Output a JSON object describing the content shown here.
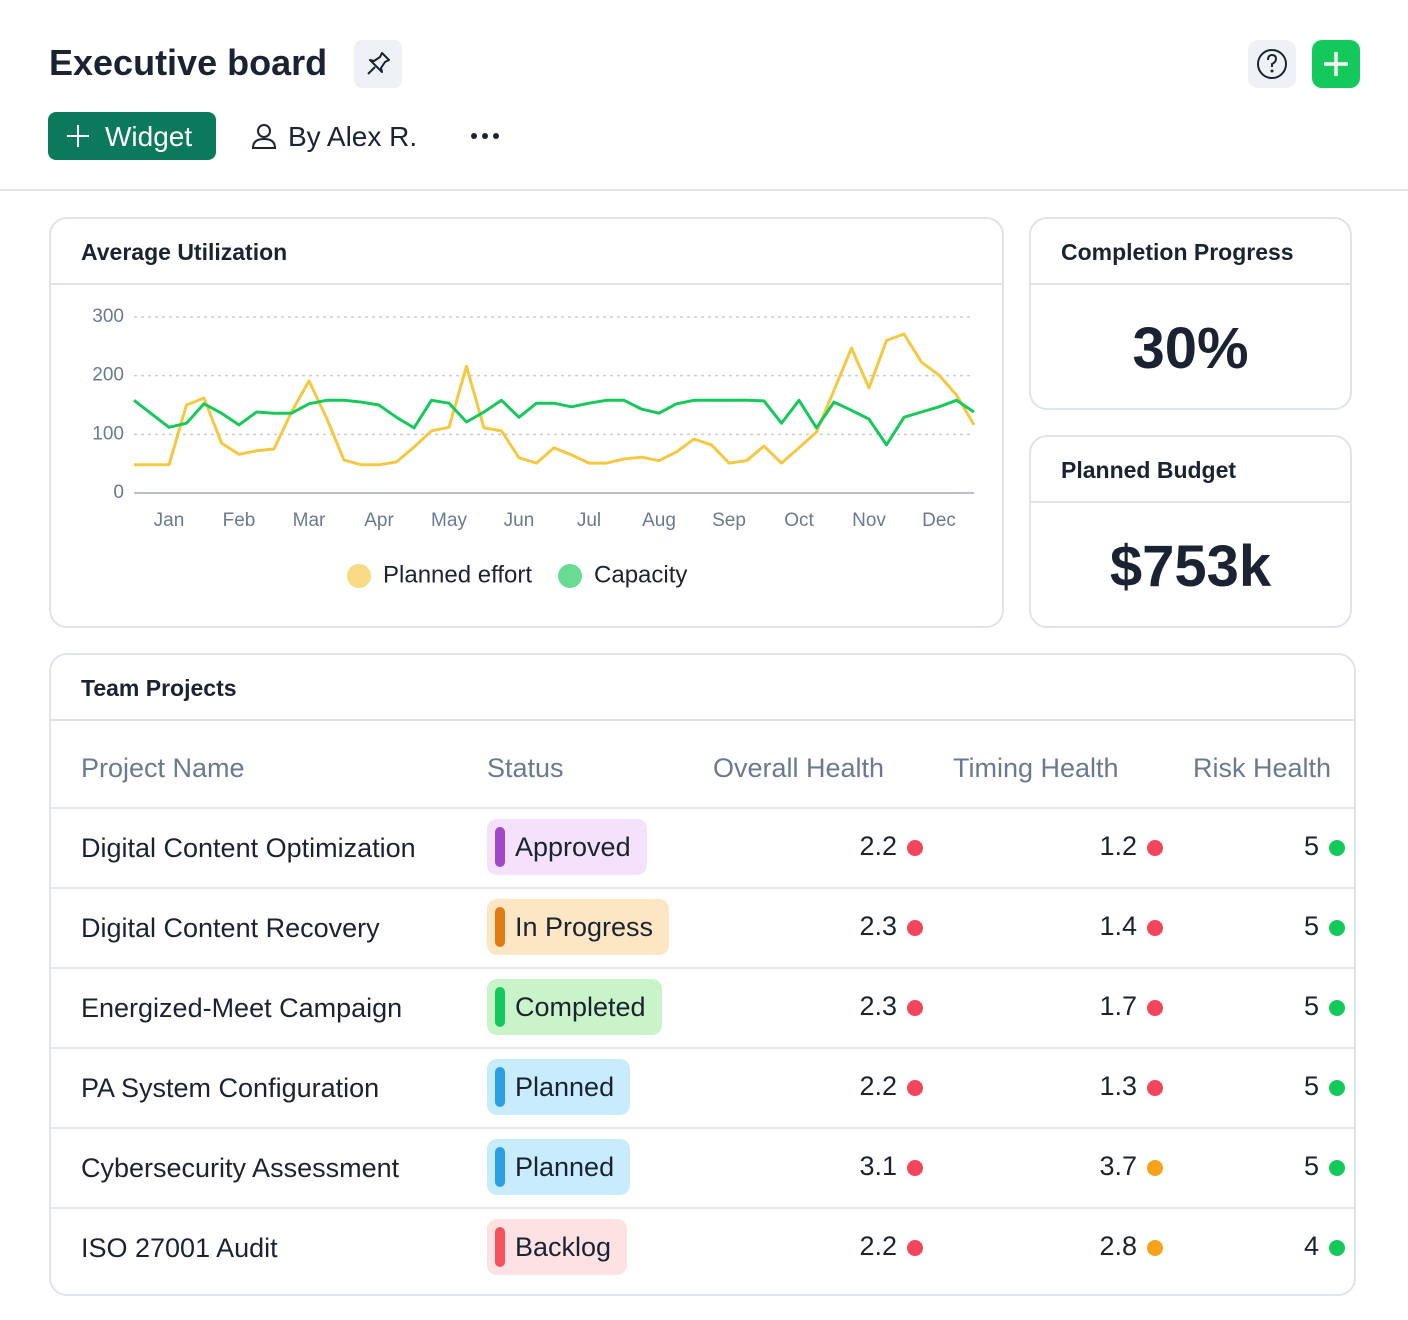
{
  "header": {
    "title": "Executive board",
    "widget_button": "Widget",
    "author": "By Alex R."
  },
  "chart_data": {
    "type": "line",
    "title": "Average Utilization",
    "categories": [
      null,
      null,
      "Jan",
      null,
      null,
      null,
      "Feb",
      null,
      null,
      null,
      "Mar",
      null,
      null,
      null,
      "Apr",
      null,
      null,
      null,
      "May",
      null,
      null,
      null,
      "Jun",
      null,
      null,
      null,
      "Jul",
      null,
      null,
      null,
      "Aug",
      null,
      null,
      null,
      "Sep",
      null,
      null,
      null,
      "Oct",
      null,
      null,
      null,
      "Nov",
      null,
      null,
      null,
      "Dec",
      null,
      null
    ],
    "series": [
      {
        "name": "Planned effort",
        "color": "#f5c842",
        "values": [
          48,
          48,
          48,
          150,
          162,
          85,
          66,
          72,
          75,
          138,
          191,
          128,
          56,
          48,
          48,
          53,
          78,
          106,
          112,
          216,
          111,
          106,
          60,
          51,
          77,
          65,
          51,
          51,
          58,
          61,
          55,
          70,
          92,
          82,
          51,
          55,
          80,
          51,
          77,
          104,
          175,
          247,
          179,
          260,
          271,
          223,
          201,
          167,
          116
        ]
      },
      {
        "name": "Capacity",
        "color": "#16c95a",
        "values": [
          158,
          135,
          112,
          119,
          152,
          136,
          116,
          138,
          136,
          136,
          152,
          158,
          158,
          155,
          150,
          129,
          111,
          158,
          153,
          121,
          138,
          158,
          129,
          153,
          153,
          147,
          153,
          158,
          158,
          143,
          136,
          152,
          158,
          158,
          158,
          158,
          157,
          119,
          158,
          111,
          155,
          141,
          126,
          82,
          129,
          138,
          147,
          158,
          138
        ]
      }
    ],
    "ylim": [
      0,
      300
    ],
    "yticks": [
      0,
      100,
      200,
      300
    ],
    "grid": true,
    "legend": "bottom"
  },
  "kpis": [
    {
      "title": "Completion Progress",
      "value": "30%"
    },
    {
      "title": "Planned Budget",
      "value": "$753k"
    }
  ],
  "table": {
    "title": "Team Projects",
    "columns": [
      "Project Name",
      "Status",
      "Overall Health",
      "Timing Health",
      "Risk Health"
    ],
    "rows": [
      {
        "name": "Digital Content Optimization",
        "status": "Approved",
        "status_color": "#a347c9",
        "status_bg": "#f4e1fb",
        "overall": {
          "value": 2.2,
          "color": "#f4455a"
        },
        "timing": {
          "value": 1.2,
          "color": "#f4455a"
        },
        "risk": {
          "value": 5,
          "color": "#14c95b"
        }
      },
      {
        "name": "Digital Content Recovery",
        "status": "In Progress",
        "status_color": "#e07b14",
        "status_bg": "#fde6c4",
        "overall": {
          "value": 2.3,
          "color": "#f4455a"
        },
        "timing": {
          "value": 1.4,
          "color": "#f4455a"
        },
        "risk": {
          "value": 5,
          "color": "#14c95b"
        }
      },
      {
        "name": "Energized-Meet Campaign",
        "status": "Completed",
        "status_color": "#14c95b",
        "status_bg": "#c9f3c8",
        "overall": {
          "value": 2.3,
          "color": "#f4455a"
        },
        "timing": {
          "value": 1.7,
          "color": "#f4455a"
        },
        "risk": {
          "value": 5,
          "color": "#14c95b"
        }
      },
      {
        "name": "PA System Configuration",
        "status": "Planned",
        "status_color": "#2d9fe0",
        "status_bg": "#c8ecfd",
        "overall": {
          "value": 2.2,
          "color": "#f4455a"
        },
        "timing": {
          "value": 1.3,
          "color": "#f4455a"
        },
        "risk": {
          "value": 5,
          "color": "#14c95b"
        }
      },
      {
        "name": "Cybersecurity Assessment",
        "status": "Planned",
        "status_color": "#2d9fe0",
        "status_bg": "#c8ecfd",
        "overall": {
          "value": 3.1,
          "color": "#f4455a"
        },
        "timing": {
          "value": 3.7,
          "color": "#f7a21b"
        },
        "risk": {
          "value": 5,
          "color": "#14c95b"
        }
      },
      {
        "name": "ISO 27001 Audit",
        "status": "Backlog",
        "status_color": "#f4525f",
        "status_bg": "#fde1e3",
        "overall": {
          "value": 2.2,
          "color": "#f4455a"
        },
        "timing": {
          "value": 2.8,
          "color": "#f7a21b"
        },
        "risk": {
          "value": 4,
          "color": "#14c95b"
        }
      }
    ]
  }
}
